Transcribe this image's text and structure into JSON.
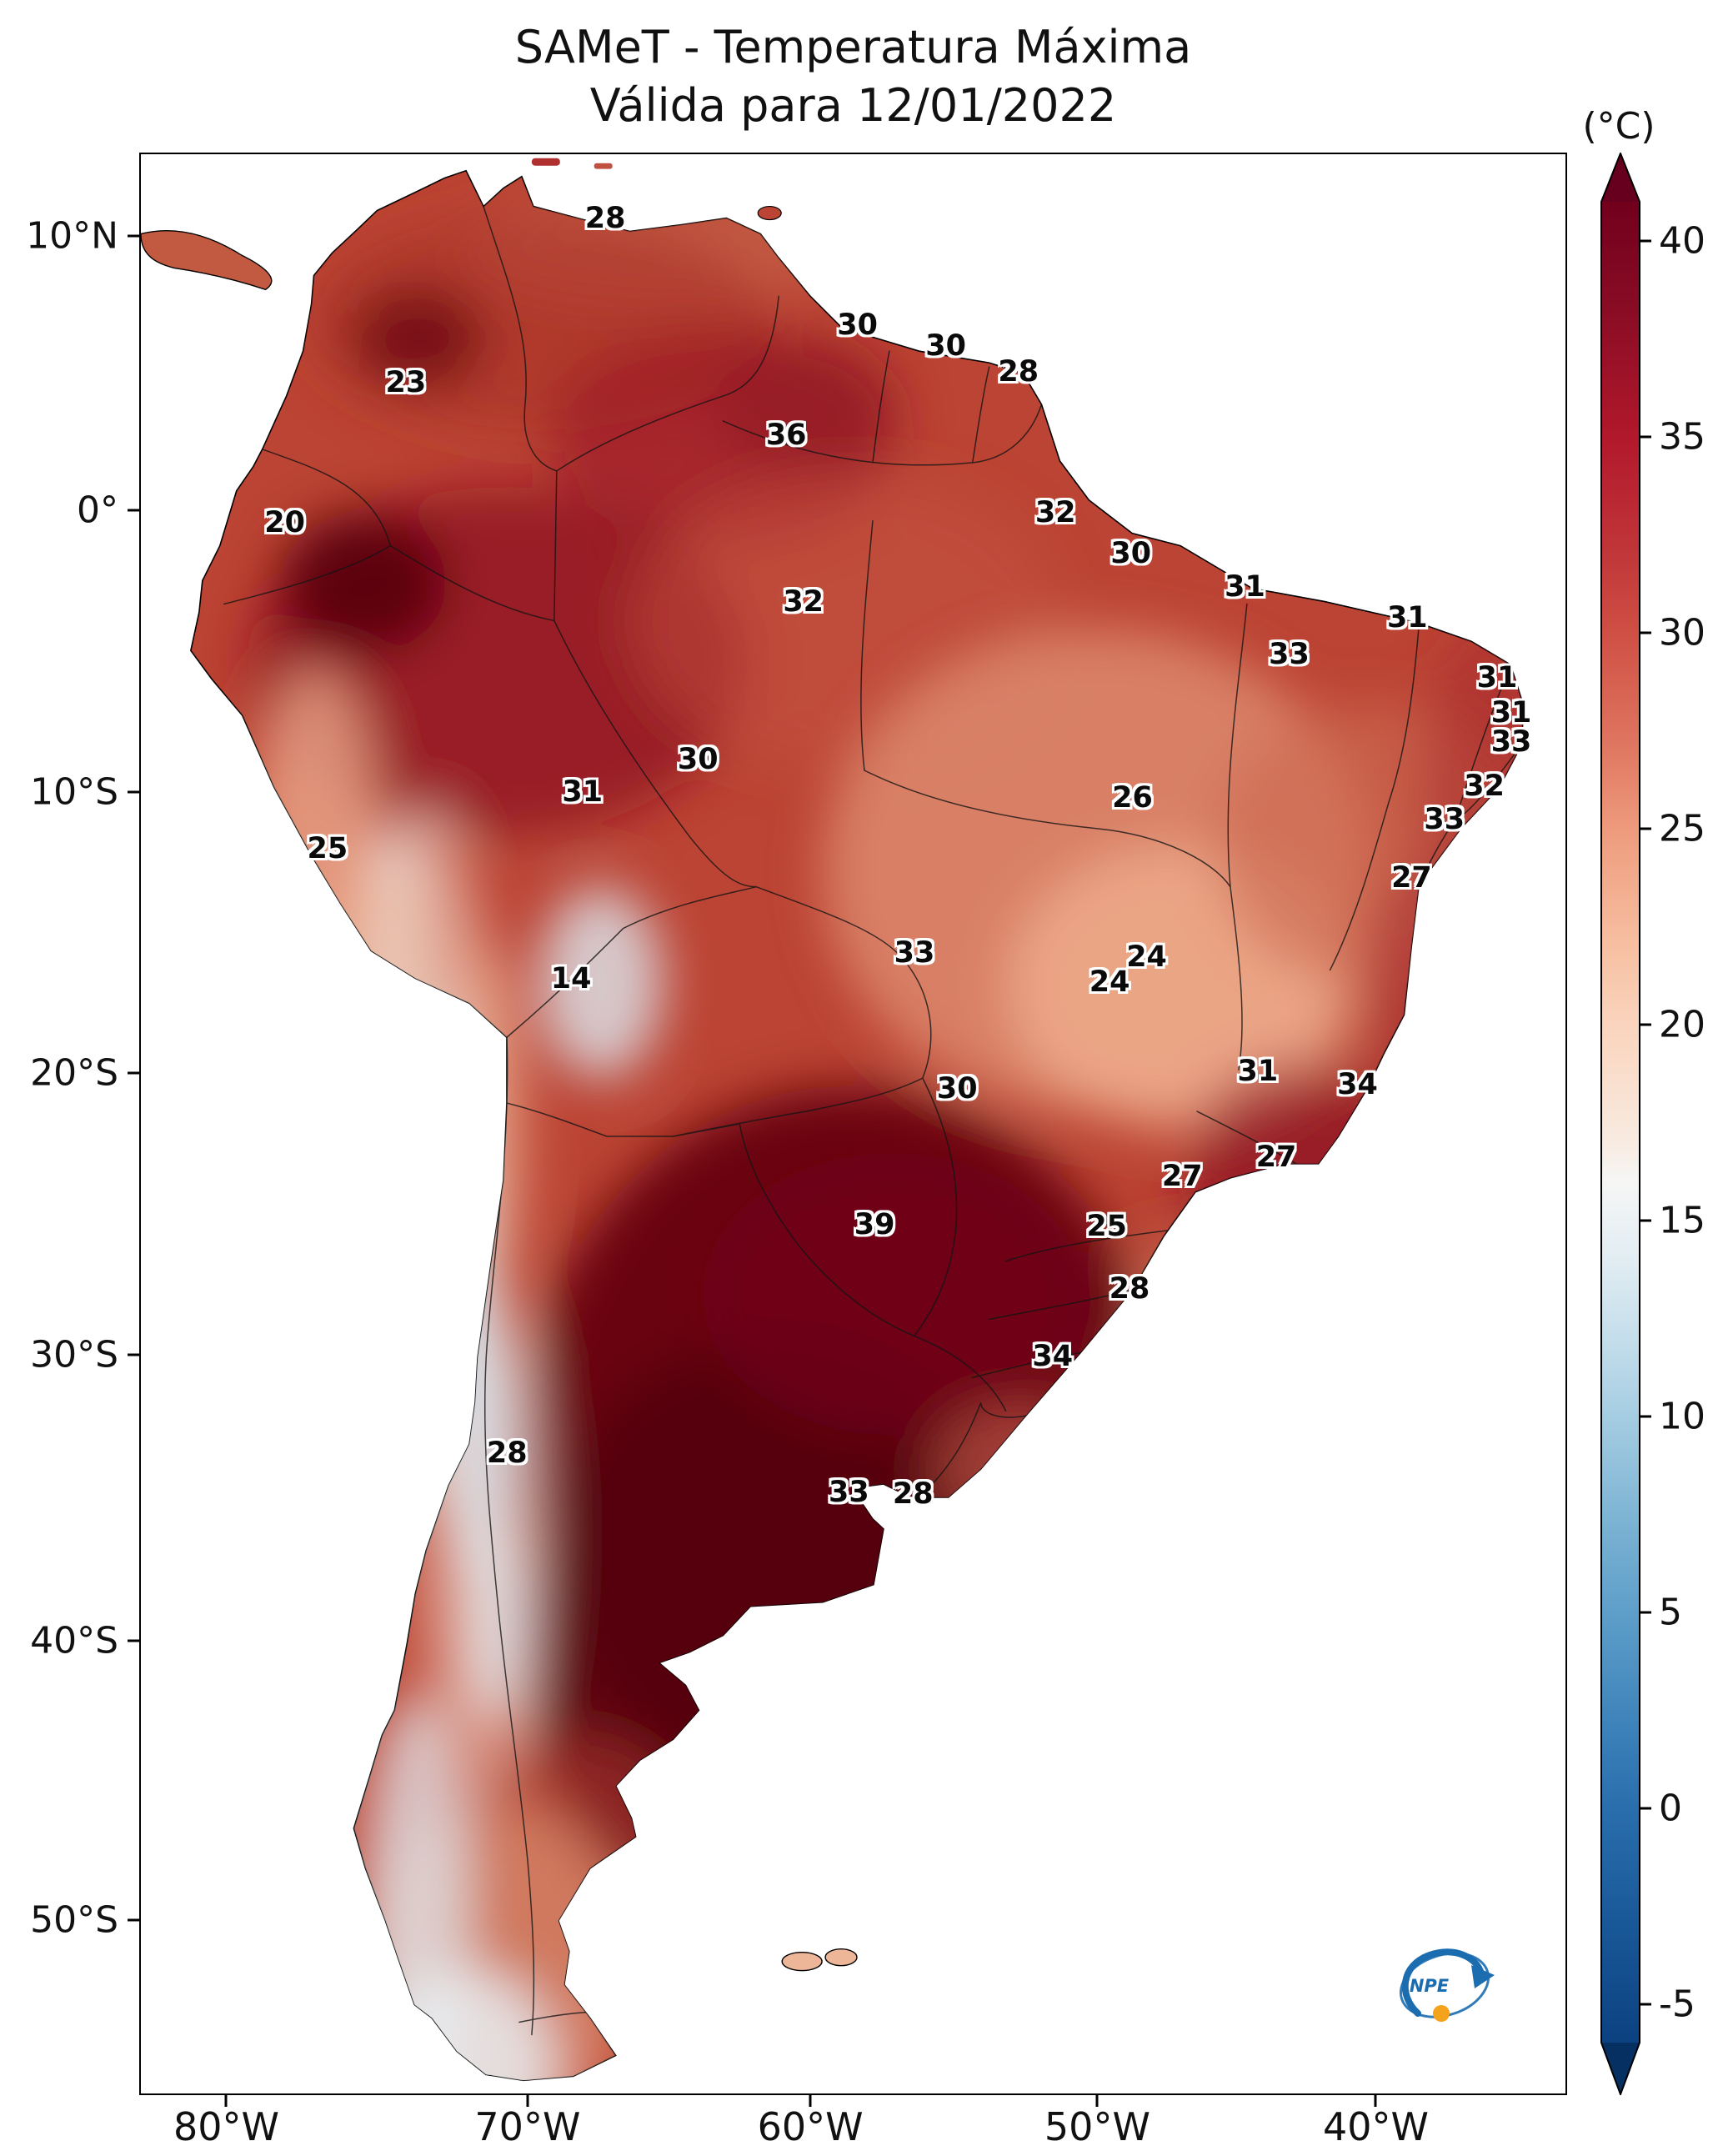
{
  "logo": {
    "text": "INPE"
  },
  "chart_data": {
    "type": "heatmap",
    "title": "SAMeT - Temperatura Máxima",
    "subtitle": "Válida para 12/01/2022",
    "variable": "Temperatura Máxima",
    "valid_date": "12/01/2022",
    "unit": "°C",
    "colorbar": {
      "unit_label": "(°C)",
      "min": -5,
      "max": 40,
      "extend": "both",
      "colormap": [
        "#67001f",
        "#b2182b",
        "#d6604d",
        "#f4a582",
        "#fddbc7",
        "#f7f7f7",
        "#d1e5f0",
        "#92c5de",
        "#4393c3",
        "#2166ac",
        "#053061"
      ],
      "ticks": [
        {
          "label": "40",
          "y_pct": 4.55
        },
        {
          "label": "35",
          "y_pct": 14.63
        },
        {
          "label": "30",
          "y_pct": 24.72
        },
        {
          "label": "25",
          "y_pct": 34.81
        },
        {
          "label": "20",
          "y_pct": 44.89
        },
        {
          "label": "15",
          "y_pct": 54.98
        },
        {
          "label": "10",
          "y_pct": 65.06
        },
        {
          "label": "5",
          "y_pct": 75.15
        },
        {
          "label": "0",
          "y_pct": 85.24
        },
        {
          "label": "-5",
          "y_pct": 95.32
        }
      ]
    },
    "x_axis": {
      "ticks": [
        {
          "label": "80°W",
          "x_pct": 6.1
        },
        {
          "label": "70°W",
          "x_pct": 27.2
        },
        {
          "label": "60°W",
          "x_pct": 47.0
        },
        {
          "label": "50°W",
          "x_pct": 67.1
        },
        {
          "label": "40°W",
          "x_pct": 86.6
        }
      ]
    },
    "y_axis": {
      "ticks": [
        {
          "label": "10°N",
          "y_pct": 4.3
        },
        {
          "label": "0°",
          "y_pct": 18.4
        },
        {
          "label": "10°S",
          "y_pct": 32.9
        },
        {
          "label": "20°S",
          "y_pct": 47.4
        },
        {
          "label": "30°S",
          "y_pct": 61.9
        },
        {
          "label": "40°S",
          "y_pct": 76.6
        },
        {
          "label": "50°S",
          "y_pct": 91.0
        }
      ]
    },
    "point_labels": [
      {
        "value": 28,
        "lon": -66.9,
        "lat": 10.7,
        "x_pct": 32.6,
        "y_pct": 3.3
      },
      {
        "value": 30,
        "lon": -58.1,
        "lat": 6.9,
        "x_pct": 50.3,
        "y_pct": 8.8
      },
      {
        "value": 30,
        "lon": -55.0,
        "lat": 6.1,
        "x_pct": 56.5,
        "y_pct": 9.9
      },
      {
        "value": 28,
        "lon": -52.5,
        "lat": 5.2,
        "x_pct": 61.6,
        "y_pct": 11.2
      },
      {
        "value": 23,
        "lon": -73.8,
        "lat": 4.8,
        "x_pct": 18.6,
        "y_pct": 11.8
      },
      {
        "value": 36,
        "lon": -60.6,
        "lat": 3.0,
        "x_pct": 45.3,
        "y_pct": 14.5
      },
      {
        "value": 20,
        "lon": -78.0,
        "lat": 0.0,
        "x_pct": 10.1,
        "y_pct": 19.0
      },
      {
        "value": 32,
        "lon": -51.2,
        "lat": 0.2,
        "x_pct": 64.2,
        "y_pct": 18.5
      },
      {
        "value": 30,
        "lon": -48.6,
        "lat": -1.3,
        "x_pct": 69.5,
        "y_pct": 20.6
      },
      {
        "value": 31,
        "lon": -44.6,
        "lat": -2.5,
        "x_pct": 77.5,
        "y_pct": 22.3
      },
      {
        "value": 32,
        "lon": -60.0,
        "lat": -3.0,
        "x_pct": 46.5,
        "y_pct": 23.1
      },
      {
        "value": 31,
        "lon": -38.9,
        "lat": -3.6,
        "x_pct": 88.9,
        "y_pct": 23.9
      },
      {
        "value": 33,
        "lon": -43.0,
        "lat": -4.9,
        "x_pct": 80.6,
        "y_pct": 25.8
      },
      {
        "value": 31,
        "lon": -35.8,
        "lat": -5.7,
        "x_pct": 95.2,
        "y_pct": 27.0
      },
      {
        "value": 31,
        "lon": -35.3,
        "lat": -7.0,
        "x_pct": 96.2,
        "y_pct": 28.8
      },
      {
        "value": 33,
        "lon": -35.3,
        "lat": -8.0,
        "x_pct": 96.2,
        "y_pct": 30.3
      },
      {
        "value": 30,
        "lon": -63.6,
        "lat": -8.6,
        "x_pct": 39.1,
        "y_pct": 31.2
      },
      {
        "value": 31,
        "lon": -67.7,
        "lat": -9.8,
        "x_pct": 31.0,
        "y_pct": 32.9
      },
      {
        "value": 26,
        "lon": -48.5,
        "lat": -10.0,
        "x_pct": 69.6,
        "y_pct": 33.2
      },
      {
        "value": 32,
        "lon": -36.2,
        "lat": -9.6,
        "x_pct": 94.3,
        "y_pct": 32.6
      },
      {
        "value": 33,
        "lon": -37.6,
        "lat": -10.8,
        "x_pct": 91.5,
        "y_pct": 34.3
      },
      {
        "value": 25,
        "lon": -76.5,
        "lat": -11.8,
        "x_pct": 13.1,
        "y_pct": 35.8
      },
      {
        "value": 27,
        "lon": -38.8,
        "lat": -12.8,
        "x_pct": 89.2,
        "y_pct": 37.3
      },
      {
        "value": 33,
        "lon": -56.1,
        "lat": -15.5,
        "x_pct": 54.3,
        "y_pct": 41.2
      },
      {
        "value": 24,
        "lon": -48.0,
        "lat": -15.6,
        "x_pct": 70.6,
        "y_pct": 41.4
      },
      {
        "value": 24,
        "lon": -49.3,
        "lat": -16.6,
        "x_pct": 68.0,
        "y_pct": 42.7
      },
      {
        "value": 14,
        "lon": -68.0,
        "lat": -16.4,
        "x_pct": 30.2,
        "y_pct": 42.5
      },
      {
        "value": 30,
        "lon": -54.6,
        "lat": -20.4,
        "x_pct": 57.3,
        "y_pct": 48.2
      },
      {
        "value": 31,
        "lon": -44.1,
        "lat": -19.7,
        "x_pct": 78.4,
        "y_pct": 47.3
      },
      {
        "value": 34,
        "lon": -40.6,
        "lat": -20.2,
        "x_pct": 85.4,
        "y_pct": 48.0
      },
      {
        "value": 27,
        "lon": -46.7,
        "lat": -23.4,
        "x_pct": 73.1,
        "y_pct": 52.7
      },
      {
        "value": 27,
        "lon": -43.4,
        "lat": -22.8,
        "x_pct": 79.7,
        "y_pct": 51.7
      },
      {
        "value": 39,
        "lon": -57.4,
        "lat": -25.1,
        "x_pct": 51.5,
        "y_pct": 55.2
      },
      {
        "value": 25,
        "lon": -49.4,
        "lat": -25.2,
        "x_pct": 67.8,
        "y_pct": 55.3
      },
      {
        "value": 28,
        "lon": -48.6,
        "lat": -27.5,
        "x_pct": 69.4,
        "y_pct": 58.5
      },
      {
        "value": 34,
        "lon": -51.3,
        "lat": -29.9,
        "x_pct": 64.0,
        "y_pct": 62.0
      },
      {
        "value": 28,
        "lon": -70.3,
        "lat": -33.3,
        "x_pct": 25.7,
        "y_pct": 67.0
      },
      {
        "value": 33,
        "lon": -58.4,
        "lat": -34.7,
        "x_pct": 49.7,
        "y_pct": 69.0
      },
      {
        "value": 28,
        "lon": -56.1,
        "lat": -34.8,
        "x_pct": 54.2,
        "y_pct": 69.1
      }
    ]
  }
}
